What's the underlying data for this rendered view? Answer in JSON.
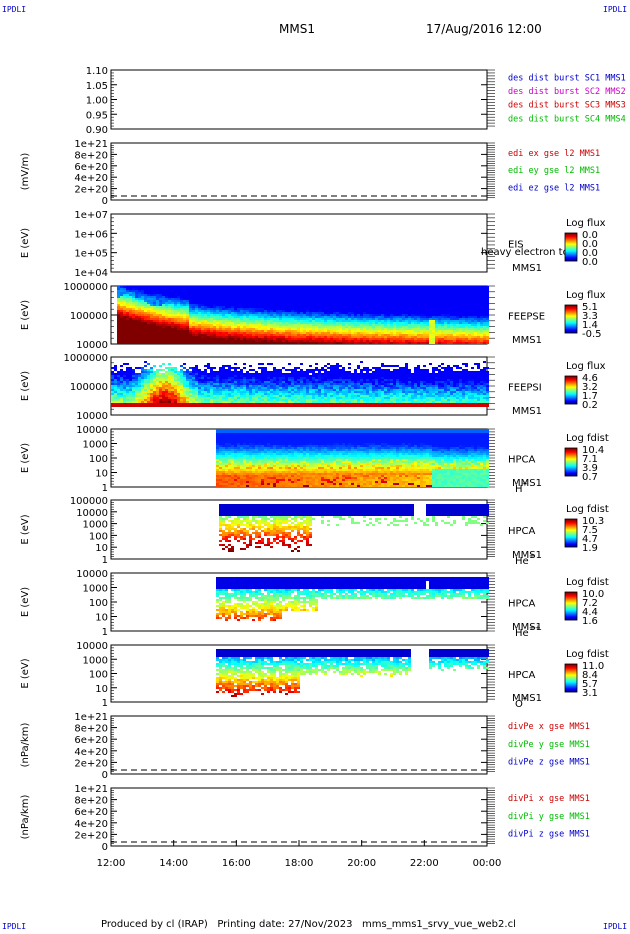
{
  "corner_labels": {
    "tl": "IPDLI",
    "tr": "IPDLI",
    "bl": "IPDLI",
    "br": "IPDLI"
  },
  "header": {
    "spacecraft": "MMS1",
    "datetime": "17/Aug/2016 12:00"
  },
  "footer": "Produced by cl (IRAP)   Printing date: 27/Nov/2023   mms_mms1_srvy_vue_web2.cl",
  "colors": {
    "blue": "#0000cc",
    "magenta": "#cc00cc",
    "red": "#cc0000",
    "green": "#00bb00"
  },
  "chart_data": [
    {
      "type": "line",
      "id": "des-dist-burst",
      "ylabel": "",
      "yticks": [
        "1.10",
        "1.05",
        "1.00",
        "0.95",
        "0.90"
      ],
      "ylim": [
        0.9,
        1.1
      ],
      "legend": [
        {
          "text": "des dist burst SC1 MMS1",
          "color": "blue"
        },
        {
          "text": "des dist burst SC2 MMS2",
          "color": "magenta"
        },
        {
          "text": "des dist burst SC3 MMS3",
          "color": "red"
        },
        {
          "text": "des dist burst SC4 MMS4",
          "color": "green"
        }
      ],
      "series": []
    },
    {
      "type": "line",
      "id": "edi-e-gse",
      "ylabel": "(mV/m)",
      "yticks": [
        "1e+21",
        "8e+20",
        "6e+20",
        "4e+20",
        "2e+20",
        "0"
      ],
      "zero_dashed": true,
      "legend": [
        {
          "text": "edi ex gse l2 MMS1",
          "color": "red"
        },
        {
          "text": "edi ey gse l2 MMS1",
          "color": "green"
        },
        {
          "text": "edi ez gse l2 MMS1",
          "color": "blue"
        }
      ],
      "series": []
    },
    {
      "type": "heatmap",
      "id": "eis",
      "ylabel": "E (eV)",
      "yticks": [
        "1e+07",
        "1e+06",
        "1e+05",
        "1e+04"
      ],
      "labels": [
        "EIS",
        "MMS1"
      ],
      "overlay_text": "heavy electron to",
      "colorbar": {
        "title": "Log flux",
        "ticks": [
          "0.0",
          "0.0",
          "0.0",
          "0.0"
        ]
      },
      "spectrogram": "empty"
    },
    {
      "type": "heatmap",
      "id": "feeps-e",
      "ylabel": "E (eV)",
      "yticks": [
        "1000000",
        "100000",
        "10000"
      ],
      "labels": [
        "FEEPSE",
        "MMS1"
      ],
      "colorbar": {
        "title": "Log flux",
        "ticks": [
          "5.1",
          "3.3",
          "1.4",
          "-0.5"
        ]
      },
      "spectrogram": "feepse"
    },
    {
      "type": "heatmap",
      "id": "feeps-i",
      "ylabel": "E (eV)",
      "yticks": [
        "1000000",
        "100000",
        "10000"
      ],
      "labels": [
        "FEEPSI",
        "MMS1"
      ],
      "colorbar": {
        "title": "Log flux",
        "ticks": [
          "4.6",
          "3.2",
          "1.7",
          "0.2"
        ]
      },
      "spectrogram": "feepsi"
    },
    {
      "type": "heatmap",
      "id": "hpca-h",
      "ylabel": "E (eV)",
      "yticks": [
        "10000",
        "1000",
        "100",
        "10",
        "1"
      ],
      "labels": [
        "HPCA",
        "MMS1"
      ],
      "species": "H",
      "charge": "+",
      "colorbar": {
        "title": "Log fdist",
        "ticks": [
          "10.4",
          "7.1",
          "3.9",
          "0.7"
        ]
      },
      "spectrogram": "hpca_h"
    },
    {
      "type": "heatmap",
      "id": "hpca-he",
      "ylabel": "E (eV)",
      "yticks": [
        "100000",
        "10000",
        "1000",
        "100",
        "10",
        "1"
      ],
      "labels": [
        "HPCA",
        "MMS1"
      ],
      "species": "He",
      "charge": "+",
      "colorbar": {
        "title": "Log fdist",
        "ticks": [
          "10.3",
          "7.5",
          "4.7",
          "1.9"
        ]
      },
      "spectrogram": "hpca_he"
    },
    {
      "type": "heatmap",
      "id": "hpca-hepp",
      "ylabel": "E (eV)",
      "yticks": [
        "10000",
        "1000",
        "100",
        "10",
        "1"
      ],
      "labels": [
        "HPCA",
        "MMS1"
      ],
      "species": "He",
      "charge": "++",
      "colorbar": {
        "title": "Log fdist",
        "ticks": [
          "10.0",
          "7.2",
          "4.4",
          "1.6"
        ]
      },
      "spectrogram": "hpca_hepp"
    },
    {
      "type": "heatmap",
      "id": "hpca-o",
      "ylabel": "E (eV)",
      "yticks": [
        "10000",
        "1000",
        "100",
        "10",
        "1"
      ],
      "labels": [
        "HPCA",
        "MMS1"
      ],
      "species": "O",
      "charge": "+",
      "colorbar": {
        "title": "Log fdist",
        "ticks": [
          "11.0",
          "8.4",
          "5.7",
          "3.1"
        ]
      },
      "spectrogram": "hpca_o"
    },
    {
      "type": "line",
      "id": "divpe-gse",
      "ylabel": "(nPa/km)",
      "yticks": [
        "1e+21",
        "8e+20",
        "6e+20",
        "4e+20",
        "2e+20",
        "0"
      ],
      "zero_dashed": true,
      "legend": [
        {
          "text": "divPe x gse MMS1",
          "color": "red"
        },
        {
          "text": "divPe y gse MMS1",
          "color": "green"
        },
        {
          "text": "divPe z gse MMS1",
          "color": "blue"
        }
      ],
      "series": []
    },
    {
      "type": "line",
      "id": "divpi-gse",
      "ylabel": "(nPa/km)",
      "yticks": [
        "1e+21",
        "8e+20",
        "6e+20",
        "4e+20",
        "2e+20",
        "0"
      ],
      "zero_dashed": true,
      "legend": [
        {
          "text": "divPi x gse MMS1",
          "color": "red"
        },
        {
          "text": "divPi y gse MMS1",
          "color": "green"
        },
        {
          "text": "divPi z gse MMS1",
          "color": "blue"
        }
      ],
      "series": []
    }
  ],
  "time_axis": {
    "ticks": [
      "12:00",
      "14:00",
      "16:00",
      "18:00",
      "20:00",
      "22:00",
      "00:00"
    ]
  }
}
